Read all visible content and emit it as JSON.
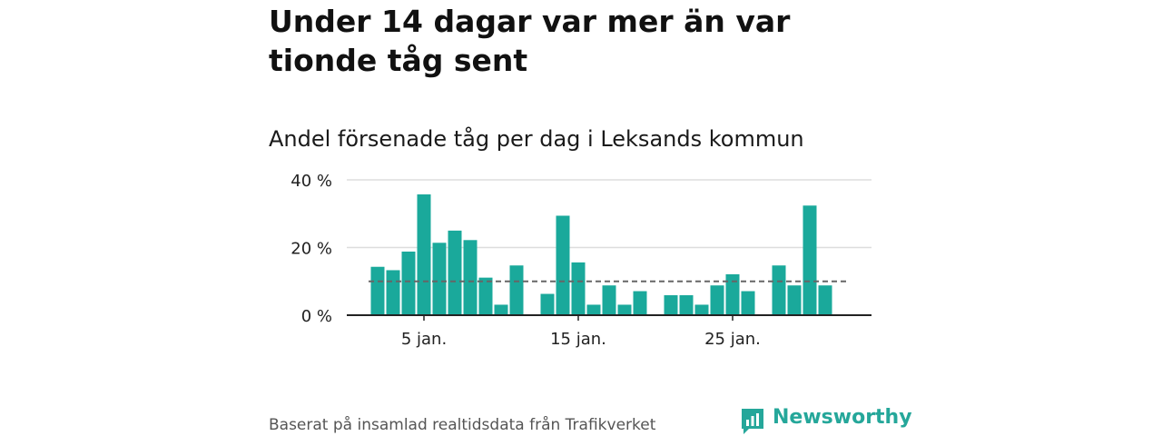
{
  "page": {
    "title": "Under 14 dagar var mer än var tionde tåg sent",
    "subtitle": "Andel försenade tåg per dag i Leksands kommun",
    "footer": "Baserat på insamlad realtidsdata från Trafikverket",
    "brand": "Newsworthy"
  },
  "colors": {
    "bar": "#1aa99b",
    "reference_line": "#666666",
    "grid": "#dddddd",
    "axis": "#222222",
    "brand": "#25a79a"
  },
  "chart_data": {
    "type": "bar",
    "title": "Andel försenade tåg per dag i Leksands kommun",
    "xlabel": "",
    "ylabel": "",
    "x_unit": "day of January",
    "x": [
      2,
      3,
      4,
      5,
      6,
      7,
      8,
      9,
      10,
      11,
      12,
      13,
      14,
      15,
      16,
      17,
      18,
      19,
      20,
      21,
      22,
      23,
      24,
      25,
      26,
      27,
      28,
      29,
      30,
      31
    ],
    "values": [
      14.3,
      13.3,
      18.8,
      35.7,
      21.4,
      25.0,
      22.2,
      11.1,
      3.1,
      14.7,
      null,
      6.3,
      29.4,
      15.6,
      3.1,
      8.8,
      3.1,
      7.1,
      null,
      5.9,
      5.9,
      3.1,
      8.8,
      12.1,
      7.1,
      null,
      14.7,
      8.8,
      32.4,
      8.8
    ],
    "reference_line": 10,
    "ylim": [
      0,
      40
    ],
    "yticks": [
      0,
      20,
      40
    ],
    "ytick_labels": [
      "0 %",
      "20 %",
      "40 %"
    ],
    "xticks": [
      5,
      15,
      25
    ],
    "xtick_labels": [
      "5 jan.",
      "15 jan.",
      "25 jan."
    ],
    "grid": true,
    "legend": "none"
  }
}
